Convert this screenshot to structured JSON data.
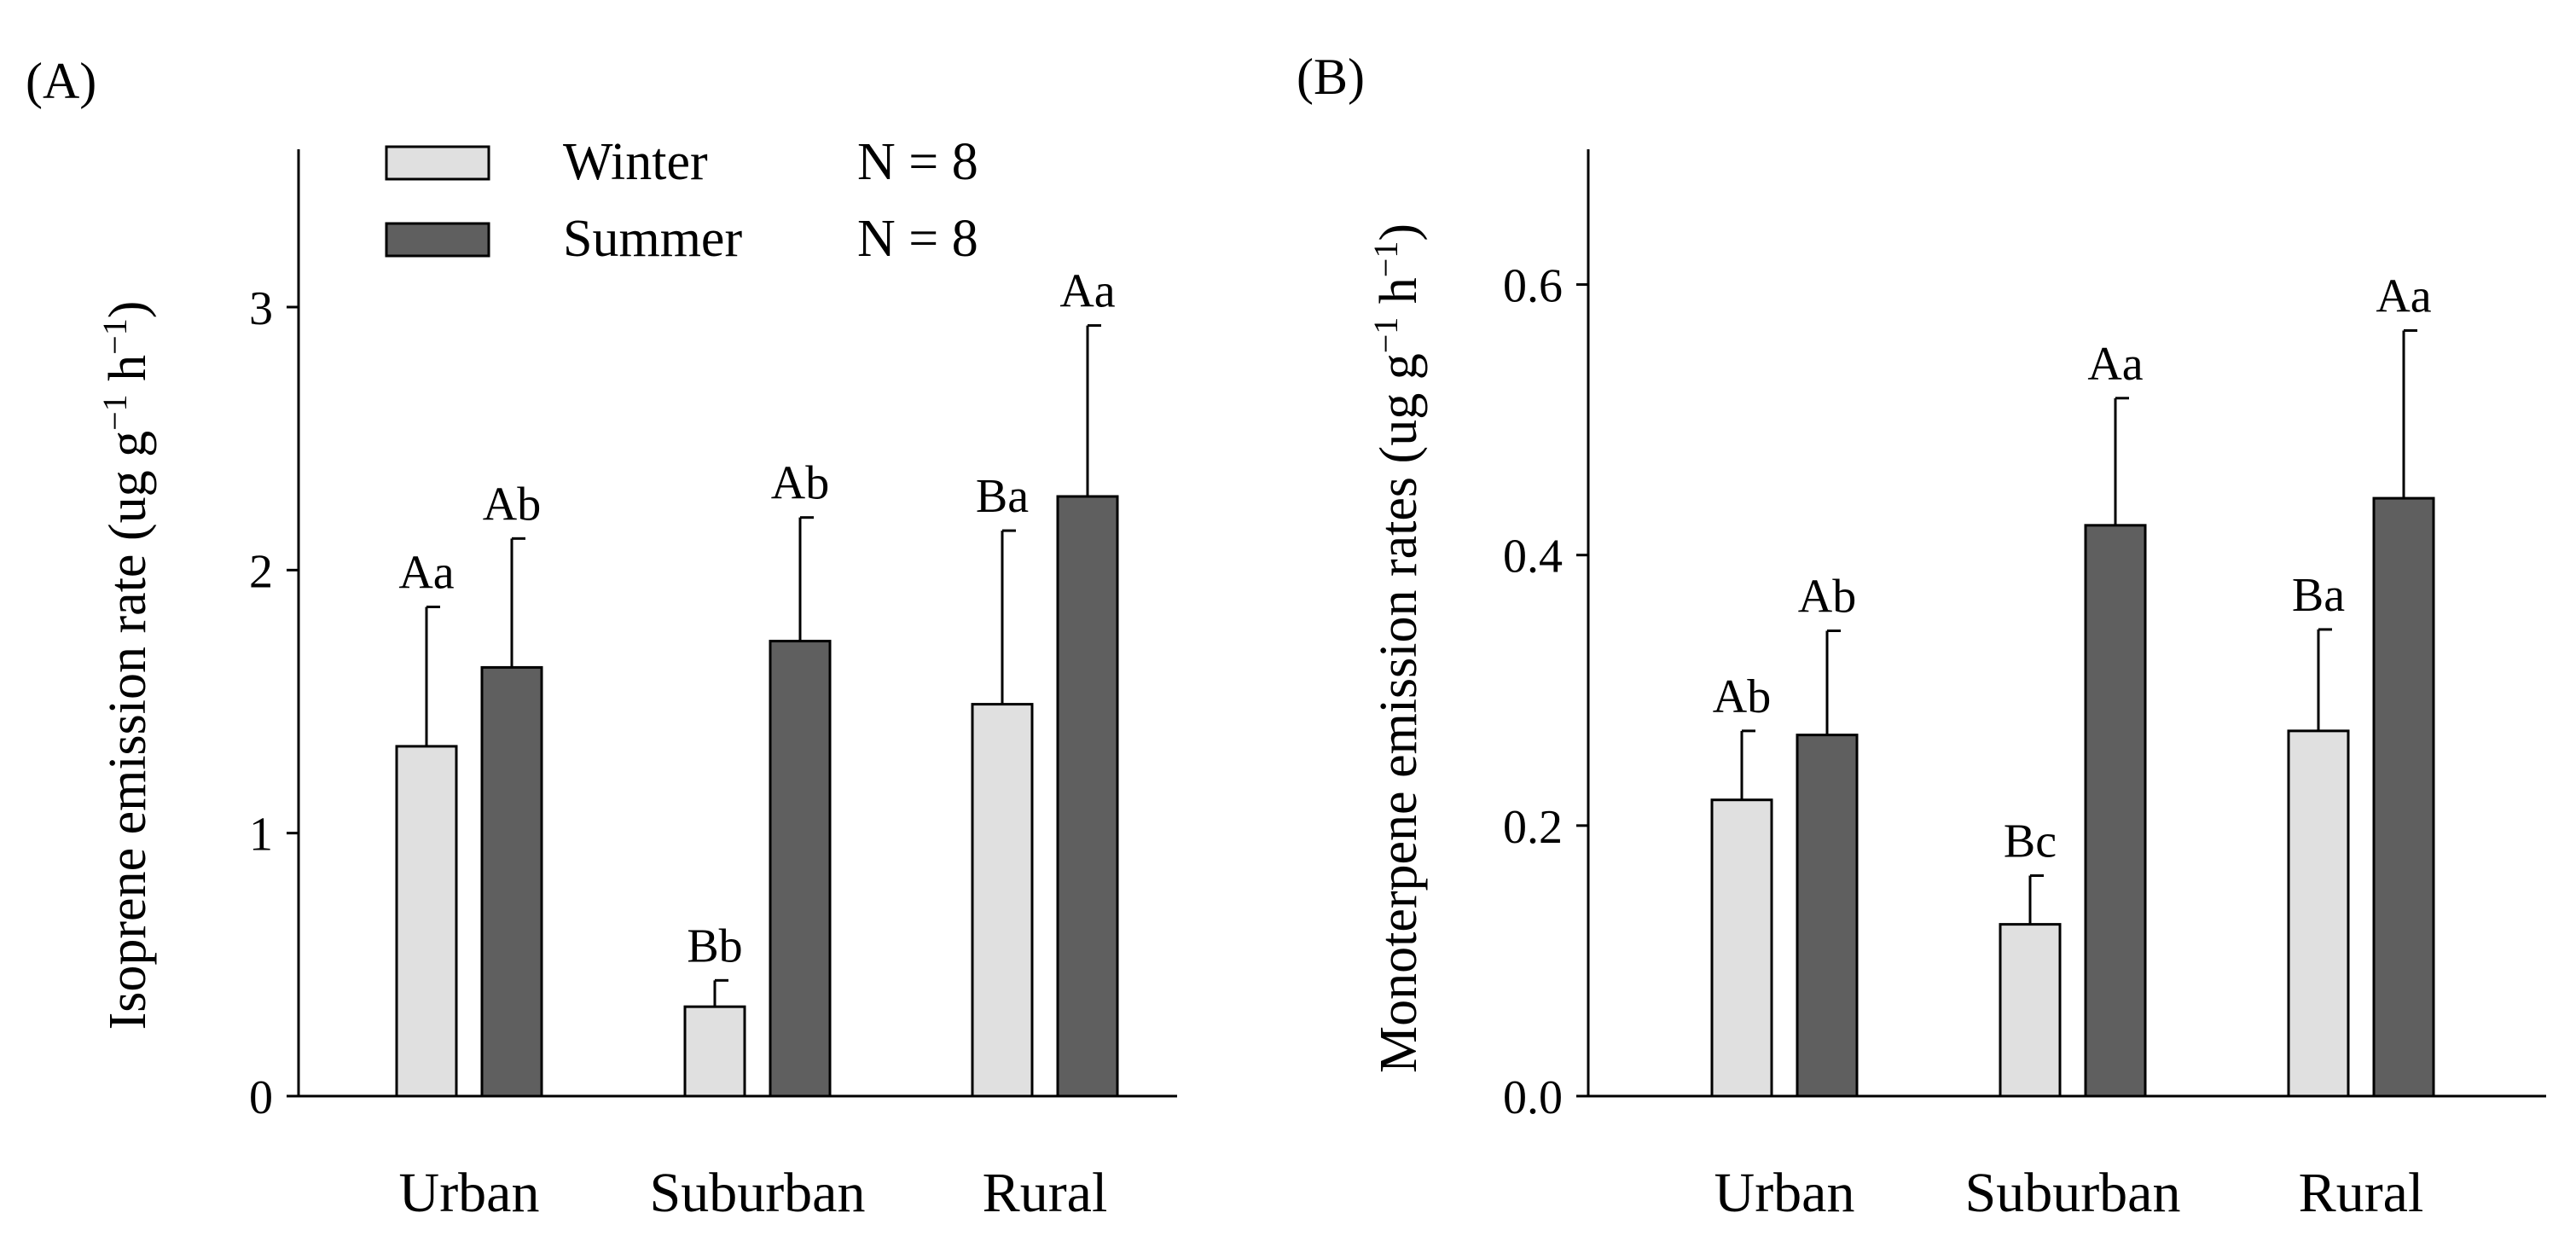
{
  "chart_data": [
    {
      "panel_label": "(A)",
      "type": "bar",
      "ylabel": "Isoprene emission rate (ug g",
      "ylabel_sup1": "−1",
      "ylabel_mid": " h",
      "ylabel_sup2": "−1",
      "ylabel_end": ")",
      "ylim": [
        0,
        3.6
      ],
      "yticks": [
        0,
        1,
        2,
        3
      ],
      "ytick_labels": [
        "0",
        "1",
        "2",
        "3"
      ],
      "categories": [
        "Urban",
        "Suburban",
        "Rural"
      ],
      "series": [
        {
          "name": "Winter",
          "values": [
            1.33,
            0.34,
            1.49
          ],
          "errors": [
            0.53,
            0.1,
            0.66
          ],
          "letters": [
            "Aa",
            "Bb",
            "Ba"
          ],
          "color": "#e0e0e0"
        },
        {
          "name": "Summer",
          "values": [
            1.63,
            1.73,
            2.28
          ],
          "errors": [
            0.49,
            0.47,
            0.65
          ],
          "letters": [
            "Ab",
            "Ab",
            "Aa"
          ],
          "color": "#5f5f5f"
        }
      ],
      "legend": {
        "position": "top-left",
        "entries": [
          {
            "label": "Winter",
            "n": "N = 8",
            "color": "#e0e0e0"
          },
          {
            "label": "Summer",
            "n": "N = 8",
            "color": "#5f5f5f"
          }
        ]
      }
    },
    {
      "panel_label": "(B)",
      "type": "bar",
      "ylabel": "Monoterpene emission rates (ug g",
      "ylabel_sup1": "−1",
      "ylabel_mid": " h",
      "ylabel_sup2": "−1",
      "ylabel_end": ")",
      "ylim": [
        0,
        0.7
      ],
      "yticks": [
        0.0,
        0.2,
        0.4,
        0.6
      ],
      "ytick_labels": [
        "0.0",
        "0.2",
        "0.4",
        "0.6"
      ],
      "categories": [
        "Urban",
        "Suburban",
        "Rural"
      ],
      "series": [
        {
          "name": "Winter",
          "values": [
            0.219,
            0.127,
            0.27
          ],
          "errors": [
            0.051,
            0.036,
            0.075
          ],
          "letters": [
            "Ab",
            "Bc",
            "Ba"
          ],
          "color": "#e0e0e0"
        },
        {
          "name": "Summer",
          "values": [
            0.267,
            0.422,
            0.442
          ],
          "errors": [
            0.077,
            0.094,
            0.124
          ],
          "letters": [
            "Ab",
            "Aa",
            "Aa"
          ],
          "color": "#5f5f5f"
        }
      ]
    }
  ]
}
